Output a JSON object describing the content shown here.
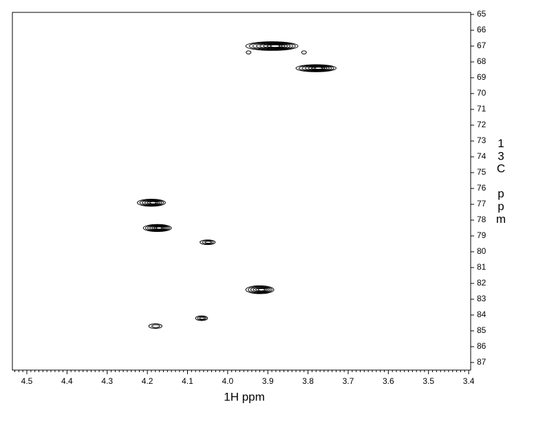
{
  "chart_data": {
    "type": "contour",
    "x_label": "1H ppm",
    "y_label": "13C ppm",
    "color": "#000000",
    "xlim": [
      4.536,
      3.395
    ],
    "xticks": [
      4.5,
      4.4,
      4.3,
      4.2,
      4.1,
      {
        "value": 4,
        "label": "4.0"
      },
      3.9,
      3.8,
      3.7,
      3.6,
      3.5,
      3.4
    ],
    "ylim": [
      64.87,
      87.48
    ],
    "yticks": [
      65,
      66,
      67,
      68,
      69,
      70,
      71,
      72,
      73,
      74,
      75,
      76,
      77,
      78,
      79,
      80,
      81,
      82,
      83,
      84,
      85,
      86,
      87
    ],
    "peaks": {
      "x": [
        3.89,
        3.78,
        4.19,
        4.175,
        4.05,
        3.92,
        4.065,
        4.18,
        3.81,
        3.948
      ],
      "y": [
        67.0,
        68.4,
        76.9,
        78.5,
        79.4,
        82.4,
        84.2,
        84.7,
        67.4,
        67.4
      ],
      "x_widths": [
        0.13,
        0.1,
        0.07,
        0.07,
        0.038,
        0.07,
        0.03,
        0.033,
        0.012,
        0.012
      ],
      "y_heights": [
        0.55,
        0.45,
        0.45,
        0.45,
        0.3,
        0.5,
        0.3,
        0.3,
        0.2,
        0.2
      ],
      "levels": [
        8,
        7,
        6,
        7,
        3,
        6,
        3,
        2,
        1,
        1
      ]
    }
  }
}
